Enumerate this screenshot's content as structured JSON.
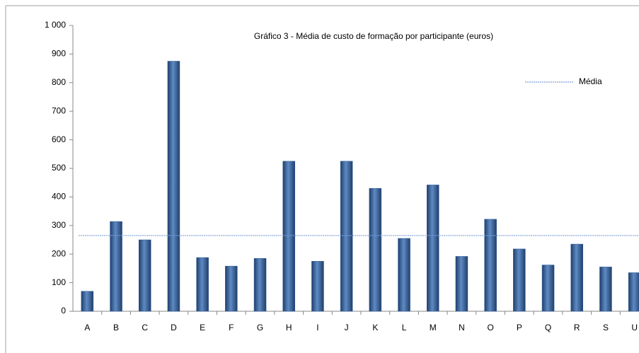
{
  "chart_data": {
    "type": "bar",
    "title": "Gráfico 3 - Média de custo de formação por participante (euros)",
    "categories": [
      "A",
      "B",
      "C",
      "D",
      "E",
      "F",
      "G",
      "H",
      "I",
      "J",
      "K",
      "L",
      "M",
      "N",
      "O",
      "P",
      "Q",
      "R",
      "S",
      "U"
    ],
    "values": [
      70,
      314,
      250,
      875,
      188,
      158,
      185,
      525,
      175,
      525,
      430,
      255,
      442,
      192,
      322,
      218,
      162,
      235,
      155,
      135
    ],
    "color": "#2e5a94",
    "average": {
      "name": "Média",
      "value": 265,
      "color": "#7a9fd6"
    },
    "ylim": [
      0,
      1000
    ],
    "yticks": [
      0,
      100,
      200,
      300,
      400,
      500,
      600,
      700,
      800,
      900,
      {
        "value": 1000,
        "label": "1 000"
      }
    ],
    "legend": "top-right"
  }
}
